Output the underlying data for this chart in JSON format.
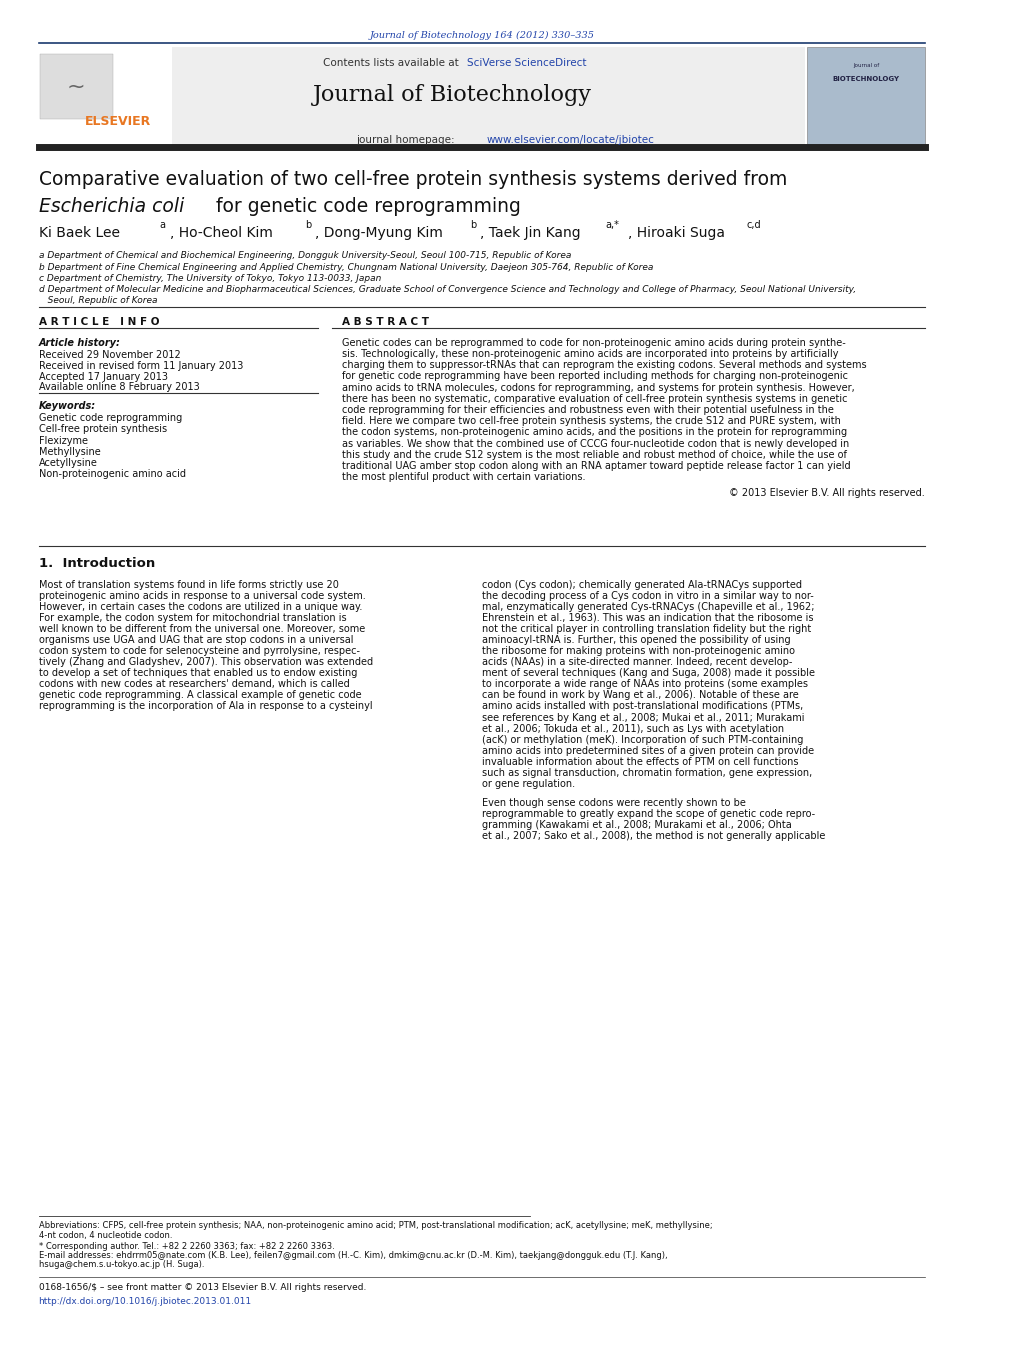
{
  "page_width": 10.21,
  "page_height": 13.51,
  "bg_color": "#ffffff",
  "header_journal_ref": "Journal of Biotechnology 164 (2012) 330–335",
  "header_ref_color": "#2244aa",
  "journal_title": "Journal of Biotechnology",
  "homepage_url": "www.elsevier.com/locate/jbiotec",
  "article_title_line1": "Comparative evaluation of two cell-free protein synthesis systems derived from",
  "article_title_line2": "Escherichia coli",
  "article_title_line2b": " for genetic code reprogramming",
  "affil_a": "a Department of Chemical and Biochemical Engineering, Dongguk University-Seoul, Seoul 100-715, Republic of Korea",
  "affil_b": "b Department of Fine Chemical Engineering and Applied Chemistry, Chungnam National University, Daejeon 305-764, Republic of Korea",
  "affil_c": "c Department of Chemistry, The University of Tokyo, Tokyo 113-0033, Japan",
  "affil_d1": "d Department of Molecular Medicine and Biopharmaceutical Sciences, Graduate School of Convergence Science and Technology and College of Pharmacy, Seoul National University,",
  "affil_d2": "   Seoul, Republic of Korea",
  "section_article_info": "A R T I C L E   I N F O",
  "section_abstract": "A B S T R A C T",
  "article_history_label": "Article history:",
  "received1": "Received 29 November 2012",
  "received2": "Received in revised form 11 January 2013",
  "accepted": "Accepted 17 January 2013",
  "available": "Available online 8 February 2013",
  "keywords_label": "Keywords:",
  "keywords": [
    "Genetic code reprogramming",
    "Cell-free protein synthesis",
    "Flexizyme",
    "Methyllysine",
    "Acetyllysine",
    "Non-proteinogenic amino acid"
  ],
  "abstract_lines": [
    "Genetic codes can be reprogrammed to code for non-proteinogenic amino acids during protein synthe-",
    "sis. Technologically, these non-proteinogenic amino acids are incorporated into proteins by artificially",
    "charging them to suppressor-tRNAs that can reprogram the existing codons. Several methods and systems",
    "for genetic code reprogramming have been reported including methods for charging non-proteinogenic",
    "amino acids to tRNA molecules, codons for reprogramming, and systems for protein synthesis. However,",
    "there has been no systematic, comparative evaluation of cell-free protein synthesis systems in genetic",
    "code reprogramming for their efficiencies and robustness even with their potential usefulness in the",
    "field. Here we compare two cell-free protein synthesis systems, the crude S12 and PURE system, with",
    "the codon systems, non-proteinogenic amino acids, and the positions in the protein for reprogramming",
    "as variables. We show that the combined use of CCCG four-nucleotide codon that is newly developed in",
    "this study and the crude S12 system is the most reliable and robust method of choice, while the use of",
    "traditional UAG amber stop codon along with an RNA aptamer toward peptide release factor 1 can yield",
    "the most plentiful product with certain variations."
  ],
  "copyright": "© 2013 Elsevier B.V. All rights reserved.",
  "section1_title": "1.  Introduction",
  "intro_left_lines": [
    "Most of translation systems found in life forms strictly use 20",
    "proteinogenic amino acids in response to a universal code system.",
    "However, in certain cases the codons are utilized in a unique way.",
    "For example, the codon system for mitochondrial translation is",
    "well known to be different from the universal one. Moreover, some",
    "organisms use UGA and UAG that are stop codons in a universal",
    "codon system to code for selenocysteine and pyrrolysine, respec-",
    "tively (Zhang and Gladyshev, 2007). This observation was extended",
    "to develop a set of techniques that enabled us to endow existing",
    "codons with new codes at researchers' demand, which is called",
    "genetic code reprogramming. A classical example of genetic code",
    "reprogramming is the incorporation of Ala in response to a cysteinyl"
  ],
  "intro_right_lines": [
    "codon (Cys codon); chemically generated Ala-tRNACys supported",
    "the decoding process of a Cys codon in vitro in a similar way to nor-",
    "mal, enzymatically generated Cys-tRNACys (Chapeville et al., 1962;",
    "Ehrenstein et al., 1963). This was an indication that the ribosome is",
    "not the critical player in controlling translation fidelity but the right",
    "aminoacyl-tRNA is. Further, this opened the possibility of using",
    "the ribosome for making proteins with non-proteinogenic amino",
    "acids (NAAs) in a site-directed manner. Indeed, recent develop-",
    "ment of several techniques (Kang and Suga, 2008) made it possible",
    "to incorporate a wide range of NAAs into proteins (some examples",
    "can be found in work by Wang et al., 2006). Notable of these are",
    "amino acids installed with post-translational modifications (PTMs,",
    "see references by Kang et al., 2008; Mukai et al., 2011; Murakami",
    "et al., 2006; Tokuda et al., 2011), such as Lys with acetylation",
    "(acK) or methylation (meK). Incorporation of such PTM-containing",
    "amino acids into predetermined sites of a given protein can provide",
    "invaluable information about the effects of PTM on cell functions",
    "such as signal transduction, chromatin formation, gene expression,",
    "or gene regulation."
  ],
  "intro_right2_lines": [
    "Even though sense codons were recently shown to be",
    "reprogrammable to greatly expand the scope of genetic code repro-",
    "gramming (Kawakami et al., 2008; Murakami et al., 2006; Ohta",
    "et al., 2007; Sako et al., 2008), the method is not generally applicable"
  ],
  "footnote_abbrev": "Abbreviations: CFPS, cell-free protein synthesis; NAA, non-proteinogenic amino acid; PTM, post-translational modification; acK, acetyllysine; meK, methyllysine;",
  "footnote_abbrev2": "4-nt codon, 4 nucleotide codon.",
  "footnote_corr": "* Corresponding author. Tel.: +82 2 2260 3363; fax: +82 2 2260 3363.",
  "footnote_email": "E-mail addresses: ehdrrm05@nate.com (K.B. Lee), feilen7@gmail.com (H.-C. Kim), dmkim@cnu.ac.kr (D.-M. Kim), taekjang@dongguk.edu (T.J. Kang),",
  "footnote_email2": "hsuga@chem.s.u-tokyo.ac.jp (H. Suga).",
  "footer_issn": "0168-1656/$ – see front matter © 2013 Elsevier B.V. All rights reserved.",
  "footer_doi": "http://dx.doi.org/10.1016/j.jbiotec.2013.01.011"
}
